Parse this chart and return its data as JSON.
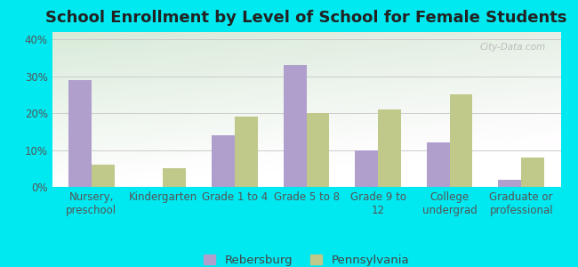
{
  "title": "School Enrollment by Level of School for Female Students",
  "categories": [
    "Nursery,\npreschool",
    "Kindergarten",
    "Grade 1 to 4",
    "Grade 5 to 8",
    "Grade 9 to\n12",
    "College\nundergrad",
    "Graduate or\nprofessional"
  ],
  "rebersburg": [
    29,
    0,
    14,
    33,
    10,
    12,
    2
  ],
  "pennsylvania": [
    6,
    5,
    19,
    20,
    21,
    25,
    8
  ],
  "rebersburg_color": "#b09fcc",
  "pennsylvania_color": "#c0c88a",
  "bar_width": 0.32,
  "ylim": [
    0,
    42
  ],
  "yticks": [
    0,
    10,
    20,
    30,
    40
  ],
  "ytick_labels": [
    "0%",
    "10%",
    "20%",
    "30%",
    "40%"
  ],
  "background_outer": "#00e8f0",
  "background_inner_topleft": "#d8edd8",
  "background_inner_topright": "#eaf5ea",
  "background_inner_bottom": "#ffffff",
  "watermark": "City-Data.com",
  "legend_labels": [
    "Rebersburg",
    "Pennsylvania"
  ],
  "title_fontsize": 13,
  "tick_fontsize": 8.5,
  "legend_fontsize": 9.5
}
